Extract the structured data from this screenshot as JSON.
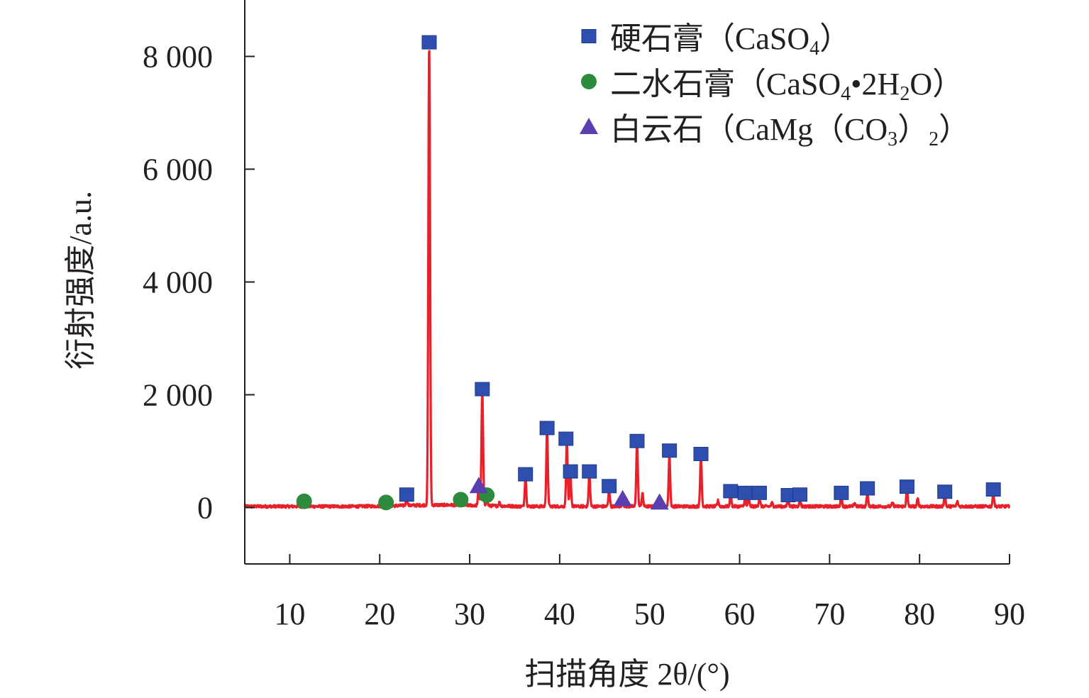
{
  "colors": {
    "line": "#e8202a",
    "anhydrite": "#2f4fb0",
    "gypsum": "#2e8b3e",
    "dolomite": "#5a3fb0",
    "axis": "#231f20"
  },
  "chart_data": {
    "type": "line",
    "xlabel": "扫描角度 2θ/(°)",
    "ylabel": "衍射强度/a.u.",
    "xlim": [
      5,
      90
    ],
    "ylim": [
      -1000,
      9000
    ],
    "x_ticks": [
      10,
      20,
      30,
      40,
      50,
      60,
      70,
      80,
      90
    ],
    "x_tick_labels": [
      "10",
      "20",
      "30",
      "40",
      "50",
      "60",
      "70",
      "80",
      "90"
    ],
    "y_ticks": [
      0,
      2000,
      4000,
      6000,
      8000
    ],
    "y_tick_labels": [
      "0",
      "2 000",
      "4 000",
      "6 000",
      "8 000"
    ],
    "baseline": 20,
    "peaks": [
      {
        "x": 11.6,
        "y": 100
      },
      {
        "x": 20.7,
        "y": 80
      },
      {
        "x": 23.0,
        "y": 150
      },
      {
        "x": 25.5,
        "y": 8250
      },
      {
        "x": 29.0,
        "y": 100
      },
      {
        "x": 31.0,
        "y": 300
      },
      {
        "x": 31.4,
        "y": 2050
      },
      {
        "x": 31.9,
        "y": 150
      },
      {
        "x": 33.3,
        "y": 80
      },
      {
        "x": 36.2,
        "y": 550
      },
      {
        "x": 38.6,
        "y": 1400
      },
      {
        "x": 40.8,
        "y": 1150
      },
      {
        "x": 41.2,
        "y": 550
      },
      {
        "x": 43.3,
        "y": 600
      },
      {
        "x": 45.5,
        "y": 300
      },
      {
        "x": 47.0,
        "y": 130
      },
      {
        "x": 48.6,
        "y": 1150
      },
      {
        "x": 49.2,
        "y": 250
      },
      {
        "x": 51.0,
        "y": 90
      },
      {
        "x": 52.2,
        "y": 950
      },
      {
        "x": 55.7,
        "y": 900
      },
      {
        "x": 57.6,
        "y": 120
      },
      {
        "x": 59.0,
        "y": 220
      },
      {
        "x": 60.6,
        "y": 140
      },
      {
        "x": 61.0,
        "y": 160
      },
      {
        "x": 62.2,
        "y": 150
      },
      {
        "x": 63.6,
        "y": 80
      },
      {
        "x": 65.4,
        "y": 160
      },
      {
        "x": 66.7,
        "y": 140
      },
      {
        "x": 71.3,
        "y": 190
      },
      {
        "x": 72.8,
        "y": 80
      },
      {
        "x": 74.2,
        "y": 250
      },
      {
        "x": 77.0,
        "y": 80
      },
      {
        "x": 78.6,
        "y": 300
      },
      {
        "x": 79.8,
        "y": 150
      },
      {
        "x": 82.8,
        "y": 230
      },
      {
        "x": 84.2,
        "y": 100
      },
      {
        "x": 88.2,
        "y": 250
      }
    ],
    "marker_series": [
      {
        "name": "硬石膏（CaSO4）",
        "marker": "square",
        "points": [
          {
            "x": 23.0,
            "y": 230
          },
          {
            "x": 25.5,
            "y": 8250
          },
          {
            "x": 31.4,
            "y": 2100
          },
          {
            "x": 36.2,
            "y": 590
          },
          {
            "x": 38.6,
            "y": 1410
          },
          {
            "x": 40.7,
            "y": 1220
          },
          {
            "x": 41.2,
            "y": 640
          },
          {
            "x": 43.3,
            "y": 640
          },
          {
            "x": 45.5,
            "y": 380
          },
          {
            "x": 48.6,
            "y": 1180
          },
          {
            "x": 52.2,
            "y": 1010
          },
          {
            "x": 55.7,
            "y": 950
          },
          {
            "x": 59.0,
            "y": 290
          },
          {
            "x": 60.6,
            "y": 260
          },
          {
            "x": 62.2,
            "y": 260
          },
          {
            "x": 65.4,
            "y": 220
          },
          {
            "x": 66.7,
            "y": 230
          },
          {
            "x": 71.3,
            "y": 260
          },
          {
            "x": 74.2,
            "y": 340
          },
          {
            "x": 78.6,
            "y": 370
          },
          {
            "x": 82.8,
            "y": 280
          },
          {
            "x": 88.2,
            "y": 320
          }
        ]
      },
      {
        "name": "二水石膏（CaSO4•2H2O）",
        "marker": "circle",
        "points": [
          {
            "x": 11.6,
            "y": 110
          },
          {
            "x": 20.7,
            "y": 90
          },
          {
            "x": 29.0,
            "y": 140
          },
          {
            "x": 31.9,
            "y": 220
          }
        ]
      },
      {
        "name": "白云石（CaMg（CO3）2）",
        "marker": "triangle",
        "points": [
          {
            "x": 31.0,
            "y": 380
          },
          {
            "x": 47.0,
            "y": 150
          },
          {
            "x": 51.1,
            "y": 90
          }
        ]
      }
    ],
    "legend": {
      "placement": "top-right",
      "entries": [
        {
          "label": "硬石膏（CaSO",
          "sub": "4",
          "tail": "）"
        },
        {
          "label": "二水石膏（CaSO",
          "sub": "4",
          "mid": "•2H",
          "sub2": "2",
          "tail": "O）"
        },
        {
          "label": "白云石（CaMg（CO",
          "sub": "3",
          "mid": "）",
          "sub2": "2",
          "tail": "）"
        }
      ]
    },
    "grid": false
  }
}
